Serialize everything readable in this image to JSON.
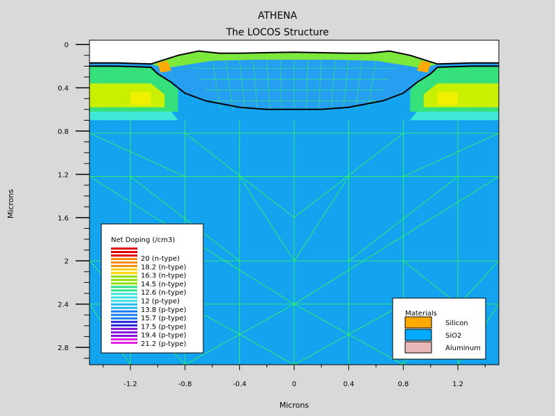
{
  "chart_data": {
    "type": "heatmap",
    "title": "ATHENA",
    "subtitle": "The LOCOS Structure",
    "xlabel": "Microns",
    "ylabel": "Microns",
    "xlim": [
      -1.5,
      1.5
    ],
    "ylim": [
      2.96,
      -0.04
    ],
    "x_ticks": [
      -1.2,
      -0.8,
      -0.4,
      0,
      0.4,
      0.8,
      1.2
    ],
    "x_tick_labels": [
      "-1.2",
      "-0.8",
      "-0.4",
      "0",
      "0.4",
      "0.8",
      "1.2"
    ],
    "y_ticks": [
      0,
      0.4,
      0.8,
      1.2,
      1.6,
      2,
      2.4,
      2.8
    ],
    "y_tick_labels": [
      "0",
      "0.4",
      "0.8",
      "1.2",
      "1.6",
      "2",
      "2.4",
      "2.8"
    ],
    "grid": false,
    "oxide_boundary": [
      [
        -1.5,
        0.2
      ],
      [
        -1.3,
        0.2
      ],
      [
        -1.05,
        0.21
      ],
      [
        -1.0,
        0.27
      ],
      [
        -0.9,
        0.35
      ],
      [
        -0.8,
        0.45
      ],
      [
        -0.65,
        0.52
      ],
      [
        -0.4,
        0.58
      ],
      [
        -0.2,
        0.6
      ],
      [
        0,
        0.6
      ],
      [
        0.2,
        0.6
      ],
      [
        0.4,
        0.58
      ],
      [
        0.65,
        0.52
      ],
      [
        0.8,
        0.45
      ],
      [
        0.9,
        0.35
      ],
      [
        1.0,
        0.27
      ],
      [
        1.05,
        0.21
      ],
      [
        1.3,
        0.2
      ],
      [
        1.5,
        0.2
      ]
    ],
    "surface": [
      [
        -1.5,
        0.17
      ],
      [
        -1.3,
        0.17
      ],
      [
        -1.05,
        0.18
      ],
      [
        -0.95,
        0.14
      ],
      [
        -0.85,
        0.1
      ],
      [
        -0.7,
        0.06
      ],
      [
        -0.55,
        0.08
      ],
      [
        -0.4,
        0.08
      ],
      [
        0,
        0.07
      ],
      [
        0.4,
        0.08
      ],
      [
        0.55,
        0.08
      ],
      [
        0.7,
        0.06
      ],
      [
        0.85,
        0.1
      ],
      [
        0.95,
        0.14
      ],
      [
        1.05,
        0.18
      ],
      [
        1.3,
        0.17
      ],
      [
        1.5,
        0.17
      ]
    ],
    "legends": [
      {
        "title": "Net Doping (/cm3)",
        "entries": [
          "20 (n-type)",
          "18.2 (n-type)",
          "16.3 (n-type)",
          "14.5 (n-type)",
          "12.6 (n-type)",
          "12 (p-type)",
          "13.8 (p-type)",
          "15.7 (p-type)",
          "17.5 (p-type)",
          "19.4 (p-type)",
          "21.2 (p-type)"
        ],
        "entry_colors": [
          "#e00000",
          "#f28a00",
          "#ffd400",
          "#8ee000",
          "#2ee08a",
          "#3ae0e0",
          "#20b8f0",
          "#1878f0",
          "#2020d8",
          "#8010d8",
          "#e020e0"
        ],
        "placement": "bottom-left"
      },
      {
        "title": "Materials",
        "entries": [
          "Silicon",
          "SiO2",
          "Aluminum"
        ],
        "entry_colors": [
          "#ffaa00",
          "#00aaff",
          "#e8b8b8"
        ],
        "placement": "bottom-right"
      }
    ]
  },
  "colors": {
    "background": "#d9d9d9",
    "substrate": "#14a3ee",
    "mesh": "#33ff55",
    "boundary": "#000000"
  }
}
